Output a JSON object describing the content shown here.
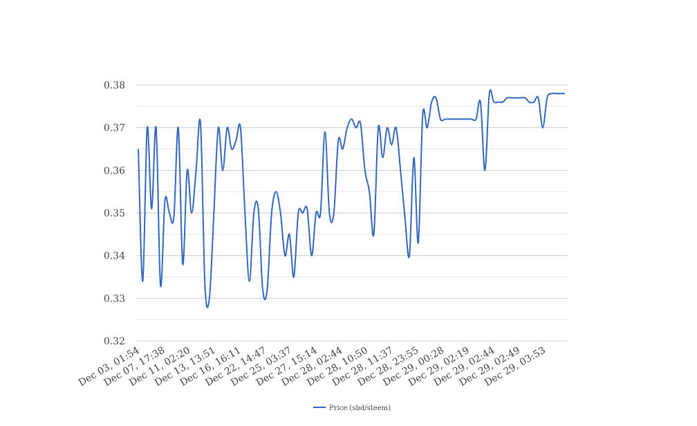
{
  "chart_data": {
    "type": "line",
    "series": [
      {
        "name": "Price (sbd/steem)",
        "color": "#3366bb",
        "values": [
          0.365,
          0.334,
          0.37,
          0.351,
          0.37,
          0.333,
          0.353,
          0.35,
          0.349,
          0.37,
          0.338,
          0.36,
          0.35,
          0.36,
          0.371,
          0.333,
          0.33,
          0.35,
          0.37,
          0.36,
          0.37,
          0.365,
          0.367,
          0.37,
          0.35,
          0.334,
          0.35,
          0.351,
          0.332,
          0.332,
          0.35,
          0.355,
          0.35,
          0.34,
          0.345,
          0.335,
          0.35,
          0.35,
          0.351,
          0.34,
          0.35,
          0.35,
          0.369,
          0.35,
          0.35,
          0.367,
          0.365,
          0.37,
          0.372,
          0.37,
          0.371,
          0.36,
          0.355,
          0.345,
          0.37,
          0.363,
          0.37,
          0.366,
          0.37,
          0.36,
          0.349,
          0.34,
          0.363,
          0.343,
          0.373,
          0.37,
          0.376,
          0.377,
          0.372,
          0.372,
          0.372,
          0.372,
          0.372,
          0.372,
          0.372,
          0.372,
          0.372,
          0.376,
          0.36,
          0.378,
          0.376,
          0.376,
          0.376,
          0.377,
          0.377,
          0.377,
          0.377,
          0.377,
          0.376,
          0.376,
          0.377,
          0.37,
          0.377,
          0.378,
          0.378,
          0.378,
          0.378
        ]
      }
    ],
    "x_tick_labels": [
      "Dec 03, 01:54",
      "Dec 07, 17:38",
      "Dec 11, 02:20",
      "Dec 13, 13:51",
      "Dec 16, 16:11",
      "Dec 22, 14:47",
      "Dec 25, 03:37",
      "Dec 27, 15:14",
      "Dec 28, 02:44",
      "Dec 28, 10:50",
      "Dec 28, 11:37",
      "Dec 28, 23:55",
      "Dec 29, 00:28",
      "Dec 29, 02:19",
      "Dec 29, 02:44",
      "Dec 29, 02:49",
      "Dec 29, 03:53"
    ],
    "y_ticks": [
      "0.32",
      "0.33",
      "0.34",
      "0.35",
      "0.36",
      "0.37",
      "0.38"
    ],
    "ylim": [
      0.32,
      0.38
    ],
    "grid": true,
    "legend_position": "bottom-center",
    "title": "",
    "xlabel": "",
    "ylabel": ""
  }
}
